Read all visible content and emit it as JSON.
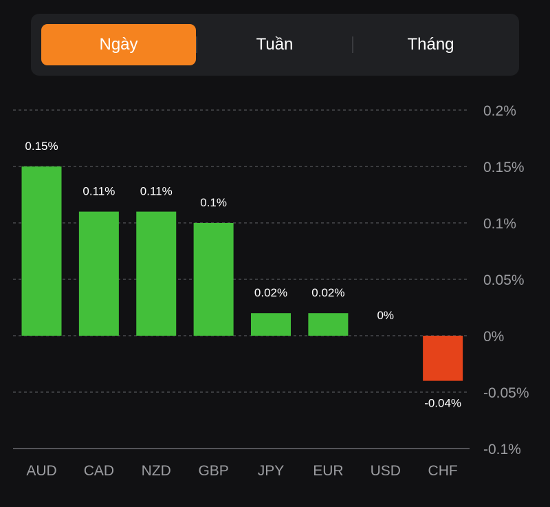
{
  "tabs": [
    {
      "label": "Ngày",
      "active": true
    },
    {
      "label": "Tuần",
      "active": false
    },
    {
      "label": "Tháng",
      "active": false
    }
  ],
  "colors": {
    "background": "#111113",
    "tab_bar": "#1f2023",
    "active_tab": "#f5831f",
    "positive_bar": "#43bf3a",
    "negative_bar": "#e5431a",
    "axis_text": "#9c9da1",
    "gridline": "#55565a"
  },
  "chart_data": {
    "type": "bar",
    "categories": [
      "AUD",
      "CAD",
      "NZD",
      "GBP",
      "JPY",
      "EUR",
      "USD",
      "CHF"
    ],
    "values": [
      0.15,
      0.11,
      0.11,
      0.1,
      0.02,
      0.02,
      0,
      -0.04
    ],
    "value_labels": [
      "0.15%",
      "0.11%",
      "0.11%",
      "0.1%",
      "0.02%",
      "0.02%",
      "0%",
      "-0.04%"
    ],
    "y_ticks": [
      0.2,
      0.15,
      0.1,
      0.05,
      0,
      -0.05,
      -0.1
    ],
    "y_tick_labels": [
      "0.2%",
      "0.15%",
      "0.1%",
      "0.05%",
      "0%",
      "-0.05%",
      "-0.1%"
    ],
    "ylim": [
      -0.1,
      0.2
    ],
    "y_axis_position": "right",
    "grid": true
  }
}
